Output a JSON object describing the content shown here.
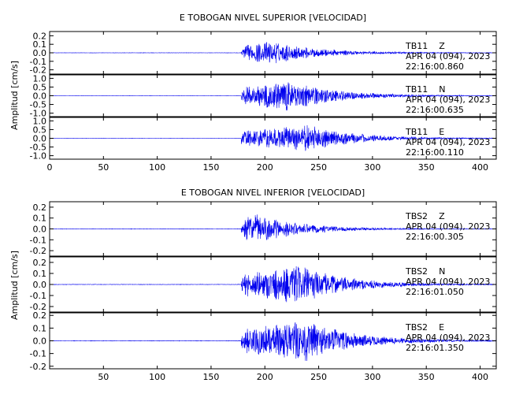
{
  "chart_data": [
    {
      "type": "line",
      "title": "E TOBOGAN NIVEL SUPERIOR [VELOCIDAD]",
      "ylabel": "Amplitud [cm/s]",
      "xlim": [
        0,
        415
      ],
      "x_ticks": [
        "0",
        "50",
        "100",
        "150",
        "200",
        "250",
        "300",
        "350",
        "400"
      ],
      "panels": [
        {
          "name": "TB11 Z",
          "label": {
            "station": "TB11",
            "component": "Z",
            "date": "APR 04 (094), 2023",
            "time": "22:16:00.860"
          },
          "ylim": [
            -0.25,
            0.25
          ],
          "y_ticks": [
            "0.2",
            "0.1",
            "0.0",
            "-0.1",
            "-0.2"
          ],
          "onset": 178,
          "peak_t": 205,
          "peak_amp": 0.14,
          "end": 415,
          "noise": 0.002
        },
        {
          "name": "TB11 N",
          "label": {
            "station": "TB11",
            "component": "N",
            "date": "APR 04 (094), 2023",
            "time": "22:16:00.635"
          },
          "ylim": [
            -1.2,
            1.2
          ],
          "y_ticks": [
            "1.0",
            "0.5",
            "0.0",
            "-0.5",
            "-1.0"
          ],
          "onset": 178,
          "peak_t": 225,
          "peak_amp": 0.9,
          "end": 415,
          "noise": 0.008
        },
        {
          "name": "TB11 E",
          "label": {
            "station": "TB11",
            "component": "E",
            "date": "APR 04 (094), 2023",
            "time": "22:16:00.110"
          },
          "ylim": [
            -1.2,
            1.2
          ],
          "y_ticks": [
            "1.0",
            "0.5",
            "0.0",
            "-0.5",
            "-1.0"
          ],
          "onset": 178,
          "peak_t": 240,
          "peak_amp": 0.8,
          "end": 415,
          "noise": 0.008
        }
      ]
    },
    {
      "type": "line",
      "title": "E TOBOGAN NIVEL INFERIOR [VELOCIDAD]",
      "ylabel": "Amplitud [cm/s]",
      "xlim": [
        0,
        415
      ],
      "x_ticks": [
        "",
        "50",
        "100",
        "150",
        "200",
        "250",
        "300",
        "350",
        "400"
      ],
      "panels": [
        {
          "name": "TBS2 Z",
          "label": {
            "station": "TBS2",
            "component": "Z",
            "date": "APR 04 (094), 2023",
            "time": "22:16:00.305"
          },
          "ylim": [
            -0.25,
            0.25
          ],
          "y_ticks": [
            "0.2",
            "0.1",
            "0.0",
            "-0.1",
            "-0.2"
          ],
          "onset": 178,
          "peak_t": 190,
          "peak_amp": 0.14,
          "end": 415,
          "noise": 0.002
        },
        {
          "name": "TBS2 N",
          "label": {
            "station": "TBS2",
            "component": "N",
            "date": "APR 04 (094), 2023",
            "time": "22:16:01.050"
          },
          "ylim": [
            -0.25,
            0.25
          ],
          "y_ticks": [
            "0.2",
            "0.1",
            "0.0",
            "-0.1",
            "-0.2"
          ],
          "onset": 178,
          "peak_t": 232,
          "peak_amp": 0.18,
          "end": 415,
          "noise": 0.002
        },
        {
          "name": "TBS2 E",
          "label": {
            "station": "TBS2",
            "component": "E",
            "date": "APR 04 (094), 2023",
            "time": "22:16:01.350"
          },
          "ylim": [
            -0.22,
            0.22
          ],
          "y_ticks": [
            "0.2",
            "0.1",
            "0.0",
            "-0.1",
            "-0.2"
          ],
          "onset": 178,
          "peak_t": 240,
          "peak_amp": 0.17,
          "end": 415,
          "noise": 0.002
        }
      ]
    }
  ],
  "colors": {
    "trace": "#0000ee",
    "axis": "#000000"
  }
}
